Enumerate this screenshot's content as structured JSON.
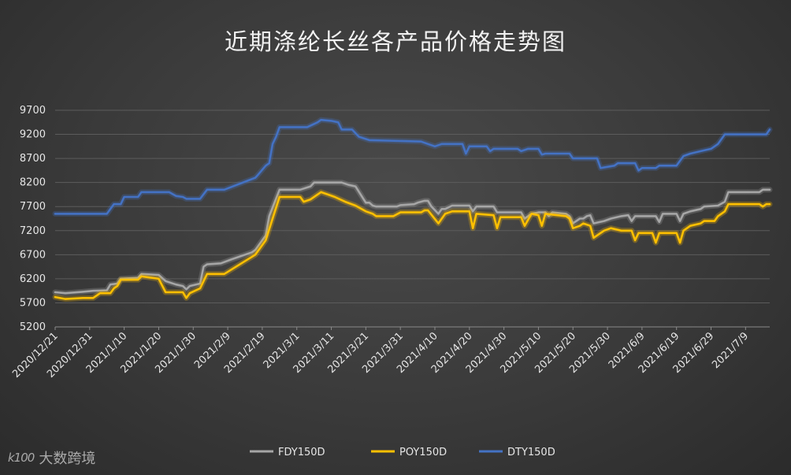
{
  "chart_data": {
    "type": "line",
    "title": "近期涤纶长丝各产品价格走势图",
    "xlabel": "",
    "ylabel": "",
    "ylim": [
      5200,
      9700
    ],
    "yticks": [
      5200,
      5700,
      6200,
      6700,
      7200,
      7700,
      8200,
      8700,
      9200,
      9700
    ],
    "x_range": [
      "2020-12-21",
      "2021-07-16"
    ],
    "xtick_labels": [
      "2020/12/21",
      "2020/12/31",
      "2021/1/10",
      "2021/1/20",
      "2021/1/30",
      "2021/2/9",
      "2021/2/19",
      "2021/3/1",
      "2021/3/11",
      "2021/3/21",
      "2021/3/31",
      "2021/4/10",
      "2021/4/20",
      "2021/4/30",
      "2021/5/10",
      "2021/5/20",
      "2021/5/30",
      "2021/6/9",
      "2021/6/19",
      "2021/6/29",
      "2021/7/9"
    ],
    "grid": "horizontal",
    "legend": "bottom",
    "series": [
      {
        "name": "FDY150D",
        "color": "#a6a6a6",
        "points": [
          [
            "2020-12-21",
            5920
          ],
          [
            "2020-12-24",
            5900
          ],
          [
            "2020-12-29",
            5930
          ],
          [
            "2021-01-01",
            5950
          ],
          [
            "2021-01-05",
            5960
          ],
          [
            "2021-01-06",
            6080
          ],
          [
            "2021-01-08",
            6100
          ],
          [
            "2021-01-09",
            6200
          ],
          [
            "2021-01-14",
            6220
          ],
          [
            "2021-01-15",
            6300
          ],
          [
            "2021-01-20",
            6280
          ],
          [
            "2021-01-22",
            6150
          ],
          [
            "2021-01-25",
            6080
          ],
          [
            "2021-01-27",
            6050
          ],
          [
            "2021-01-28",
            5980
          ],
          [
            "2021-01-29",
            6050
          ],
          [
            "2021-02-01",
            6100
          ],
          [
            "2021-02-02",
            6450
          ],
          [
            "2021-02-03",
            6500
          ],
          [
            "2021-02-07",
            6520
          ],
          [
            "2021-02-10",
            6600
          ],
          [
            "2021-02-16",
            6750
          ],
          [
            "2021-02-17",
            6800
          ],
          [
            "2021-02-20",
            7100
          ],
          [
            "2021-02-21",
            7500
          ],
          [
            "2021-02-24",
            8050
          ],
          [
            "2021-03-02",
            8050
          ],
          [
            "2021-03-05",
            8120
          ],
          [
            "2021-03-06",
            8200
          ],
          [
            "2021-03-14",
            8200
          ],
          [
            "2021-03-16",
            8150
          ],
          [
            "2021-03-18",
            8120
          ],
          [
            "2021-03-21",
            7780
          ],
          [
            "2021-03-22",
            7780
          ],
          [
            "2021-03-23",
            7720
          ],
          [
            "2021-03-24",
            7700
          ],
          [
            "2021-03-30",
            7700
          ],
          [
            "2021-03-31",
            7730
          ],
          [
            "2021-04-04",
            7750
          ],
          [
            "2021-04-05",
            7780
          ],
          [
            "2021-04-07",
            7820
          ],
          [
            "2021-04-08",
            7820
          ],
          [
            "2021-04-09",
            7700
          ],
          [
            "2021-04-11",
            7550
          ],
          [
            "2021-04-12",
            7650
          ],
          [
            "2021-04-13",
            7650
          ],
          [
            "2021-04-15",
            7720
          ],
          [
            "2021-04-20",
            7720
          ],
          [
            "2021-04-21",
            7600
          ],
          [
            "2021-04-22",
            7700
          ],
          [
            "2021-04-27",
            7700
          ],
          [
            "2021-04-28",
            7580
          ],
          [
            "2021-05-05",
            7580
          ],
          [
            "2021-05-06",
            7450
          ],
          [
            "2021-05-08",
            7550
          ],
          [
            "2021-05-10",
            7580
          ],
          [
            "2021-05-12",
            7580
          ],
          [
            "2021-05-13",
            7500
          ],
          [
            "2021-05-14",
            7580
          ],
          [
            "2021-05-18",
            7550
          ],
          [
            "2021-05-19",
            7500
          ],
          [
            "2021-05-20",
            7350
          ],
          [
            "2021-05-22",
            7450
          ],
          [
            "2021-05-23",
            7450
          ],
          [
            "2021-05-24",
            7500
          ],
          [
            "2021-05-25",
            7520
          ],
          [
            "2021-05-26",
            7350
          ],
          [
            "2021-05-29",
            7400
          ],
          [
            "2021-05-31",
            7450
          ],
          [
            "2021-06-03",
            7500
          ],
          [
            "2021-06-05",
            7520
          ],
          [
            "2021-06-06",
            7400
          ],
          [
            "2021-06-07",
            7500
          ],
          [
            "2021-06-13",
            7500
          ],
          [
            "2021-06-14",
            7380
          ],
          [
            "2021-06-15",
            7550
          ],
          [
            "2021-06-19",
            7550
          ],
          [
            "2021-06-20",
            7400
          ],
          [
            "2021-06-21",
            7550
          ],
          [
            "2021-06-23",
            7600
          ],
          [
            "2021-06-26",
            7650
          ],
          [
            "2021-06-27",
            7700
          ],
          [
            "2021-07-01",
            7720
          ],
          [
            "2021-07-03",
            7800
          ],
          [
            "2021-07-04",
            8000
          ],
          [
            "2021-07-13",
            8000
          ],
          [
            "2021-07-14",
            8050
          ],
          [
            "2021-07-16",
            8050
          ]
        ]
      },
      {
        "name": "POY150D",
        "color": "#ffc000",
        "points": [
          [
            "2020-12-21",
            5820
          ],
          [
            "2020-12-24",
            5780
          ],
          [
            "2020-12-29",
            5800
          ],
          [
            "2021-01-01",
            5800
          ],
          [
            "2021-01-03",
            5900
          ],
          [
            "2021-01-06",
            5900
          ],
          [
            "2021-01-07",
            6000
          ],
          [
            "2021-01-08",
            6050
          ],
          [
            "2021-01-09",
            6180
          ],
          [
            "2021-01-14",
            6180
          ],
          [
            "2021-01-15",
            6250
          ],
          [
            "2021-01-20",
            6200
          ],
          [
            "2021-01-22",
            5920
          ],
          [
            "2021-01-27",
            5920
          ],
          [
            "2021-01-28",
            5800
          ],
          [
            "2021-01-29",
            5900
          ],
          [
            "2021-02-01",
            6000
          ],
          [
            "2021-02-03",
            6300
          ],
          [
            "2021-02-08",
            6300
          ],
          [
            "2021-02-17",
            6700
          ],
          [
            "2021-02-20",
            7000
          ],
          [
            "2021-02-22",
            7450
          ],
          [
            "2021-02-24",
            7900
          ],
          [
            "2021-03-02",
            7900
          ],
          [
            "2021-03-03",
            7800
          ],
          [
            "2021-03-05",
            7850
          ],
          [
            "2021-03-08",
            8000
          ],
          [
            "2021-03-10",
            7950
          ],
          [
            "2021-03-12",
            7900
          ],
          [
            "2021-03-15",
            7800
          ],
          [
            "2021-03-18",
            7720
          ],
          [
            "2021-03-21",
            7600
          ],
          [
            "2021-03-23",
            7550
          ],
          [
            "2021-03-24",
            7500
          ],
          [
            "2021-03-29",
            7500
          ],
          [
            "2021-03-31",
            7580
          ],
          [
            "2021-04-06",
            7580
          ],
          [
            "2021-04-07",
            7620
          ],
          [
            "2021-04-08",
            7620
          ],
          [
            "2021-04-11",
            7350
          ],
          [
            "2021-04-13",
            7550
          ],
          [
            "2021-04-15",
            7600
          ],
          [
            "2021-04-20",
            7600
          ],
          [
            "2021-04-21",
            7250
          ],
          [
            "2021-04-22",
            7550
          ],
          [
            "2021-04-27",
            7520
          ],
          [
            "2021-04-28",
            7250
          ],
          [
            "2021-04-29",
            7480
          ],
          [
            "2021-05-05",
            7480
          ],
          [
            "2021-05-06",
            7300
          ],
          [
            "2021-05-08",
            7550
          ],
          [
            "2021-05-10",
            7520
          ],
          [
            "2021-05-11",
            7300
          ],
          [
            "2021-05-12",
            7550
          ],
          [
            "2021-05-18",
            7500
          ],
          [
            "2021-05-19",
            7450
          ],
          [
            "2021-05-20",
            7250
          ],
          [
            "2021-05-22",
            7300
          ],
          [
            "2021-05-23",
            7350
          ],
          [
            "2021-05-25",
            7300
          ],
          [
            "2021-05-26",
            7050
          ],
          [
            "2021-05-29",
            7200
          ],
          [
            "2021-05-31",
            7250
          ],
          [
            "2021-06-03",
            7200
          ],
          [
            "2021-06-06",
            7200
          ],
          [
            "2021-06-07",
            7000
          ],
          [
            "2021-06-08",
            7150
          ],
          [
            "2021-06-12",
            7150
          ],
          [
            "2021-06-13",
            6950
          ],
          [
            "2021-06-14",
            7150
          ],
          [
            "2021-06-19",
            7150
          ],
          [
            "2021-06-20",
            6950
          ],
          [
            "2021-06-21",
            7200
          ],
          [
            "2021-06-23",
            7300
          ],
          [
            "2021-06-26",
            7350
          ],
          [
            "2021-06-27",
            7400
          ],
          [
            "2021-06-30",
            7400
          ],
          [
            "2021-07-01",
            7500
          ],
          [
            "2021-07-03",
            7600
          ],
          [
            "2021-07-04",
            7750
          ],
          [
            "2021-07-13",
            7750
          ],
          [
            "2021-07-14",
            7700
          ],
          [
            "2021-07-15",
            7750
          ],
          [
            "2021-07-16",
            7750
          ]
        ]
      },
      {
        "name": "DTY150D",
        "color": "#4472c4",
        "points": [
          [
            "2020-12-21",
            7550
          ],
          [
            "2021-01-05",
            7550
          ],
          [
            "2021-01-07",
            7750
          ],
          [
            "2021-01-09",
            7750
          ],
          [
            "2021-01-10",
            7900
          ],
          [
            "2021-01-14",
            7900
          ],
          [
            "2021-01-15",
            8000
          ],
          [
            "2021-01-23",
            8000
          ],
          [
            "2021-01-25",
            7920
          ],
          [
            "2021-01-27",
            7900
          ],
          [
            "2021-01-28",
            7860
          ],
          [
            "2021-02-01",
            7860
          ],
          [
            "2021-02-03",
            8050
          ],
          [
            "2021-02-08",
            8050
          ],
          [
            "2021-02-17",
            8300
          ],
          [
            "2021-02-18",
            8380
          ],
          [
            "2021-02-20",
            8550
          ],
          [
            "2021-02-21",
            8600
          ],
          [
            "2021-02-22",
            9000
          ],
          [
            "2021-02-23",
            9150
          ],
          [
            "2021-02-24",
            9350
          ],
          [
            "2021-03-04",
            9350
          ],
          [
            "2021-03-07",
            9450
          ],
          [
            "2021-03-08",
            9500
          ],
          [
            "2021-03-11",
            9480
          ],
          [
            "2021-03-13",
            9450
          ],
          [
            "2021-03-14",
            9300
          ],
          [
            "2021-03-17",
            9300
          ],
          [
            "2021-03-19",
            9150
          ],
          [
            "2021-03-22",
            9080
          ],
          [
            "2021-04-06",
            9050
          ],
          [
            "2021-04-08",
            9000
          ],
          [
            "2021-04-10",
            8950
          ],
          [
            "2021-04-12",
            9000
          ],
          [
            "2021-04-13",
            9000
          ],
          [
            "2021-04-18",
            9000
          ],
          [
            "2021-04-19",
            8800
          ],
          [
            "2021-04-20",
            8950
          ],
          [
            "2021-04-25",
            8950
          ],
          [
            "2021-04-26",
            8850
          ],
          [
            "2021-04-27",
            8900
          ],
          [
            "2021-05-04",
            8900
          ],
          [
            "2021-05-05",
            8850
          ],
          [
            "2021-05-07",
            8900
          ],
          [
            "2021-05-10",
            8900
          ],
          [
            "2021-05-11",
            8780
          ],
          [
            "2021-05-12",
            8800
          ],
          [
            "2021-05-19",
            8800
          ],
          [
            "2021-05-20",
            8700
          ],
          [
            "2021-05-27",
            8700
          ],
          [
            "2021-05-28",
            8500
          ],
          [
            "2021-06-01",
            8550
          ],
          [
            "2021-06-02",
            8600
          ],
          [
            "2021-06-07",
            8600
          ],
          [
            "2021-06-08",
            8450
          ],
          [
            "2021-06-09",
            8500
          ],
          [
            "2021-06-13",
            8500
          ],
          [
            "2021-06-14",
            8550
          ],
          [
            "2021-06-19",
            8550
          ],
          [
            "2021-06-21",
            8750
          ],
          [
            "2021-06-23",
            8800
          ],
          [
            "2021-06-26",
            8850
          ],
          [
            "2021-06-29",
            8900
          ],
          [
            "2021-07-01",
            9000
          ],
          [
            "2021-07-03",
            9200
          ],
          [
            "2021-07-15",
            9200
          ],
          [
            "2021-07-16",
            9300
          ]
        ]
      }
    ]
  },
  "legend": {
    "items": [
      {
        "label": "FDY150D",
        "color": "#a6a6a6"
      },
      {
        "label": "POY150D",
        "color": "#ffc000"
      },
      {
        "label": "DTY150D",
        "color": "#4472c4"
      }
    ]
  },
  "watermark": {
    "logo": "k100",
    "text": "大数跨境"
  }
}
